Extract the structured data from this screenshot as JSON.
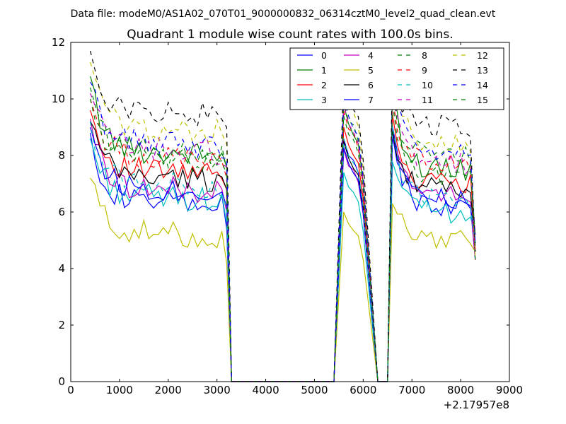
{
  "figure": {
    "suptitle": "Data file: modeM0/AS1A02_070T01_9000000832_06314cztM0_level2_quad_clean.evt",
    "x_offset_label": "+2.17957e8"
  },
  "chart_data": {
    "type": "line",
    "title": "Quadrant 1 module wise count rates with 100.0s bins.",
    "xlabel": "",
    "ylabel": "",
    "xlim": [
      0,
      9000
    ],
    "ylim": [
      0,
      12
    ],
    "x_ticks": [
      0,
      1000,
      2000,
      3000,
      4000,
      5000,
      6000,
      7000,
      8000,
      9000
    ],
    "y_ticks": [
      0,
      2,
      4,
      6,
      8,
      10,
      12
    ],
    "x_offset": 217957000,
    "grid": false,
    "legend": {
      "placement": "top-right",
      "columns": 4
    },
    "segments": [
      {
        "start": 400,
        "end": 3200,
        "step": 100
      },
      {
        "start": 5600,
        "end": 5900,
        "step": 100
      },
      {
        "start": 6600,
        "end": 8300,
        "step": 100
      }
    ],
    "series": [
      {
        "name": "0",
        "color": "#0000ff",
        "style": "solid",
        "first": 8.8,
        "mean": 6.2,
        "drop": 5.4,
        "peak": 8.6,
        "seg3": 6.2
      },
      {
        "name": "1",
        "color": "#008000",
        "style": "solid",
        "first": 10.8,
        "mean": 8.0,
        "drop": 7.6,
        "peak": 9.8,
        "seg3": 7.5
      },
      {
        "name": "2",
        "color": "#ff0000",
        "style": "solid",
        "first": 9.6,
        "mean": 7.3,
        "drop": 6.8,
        "peak": 9.0,
        "seg3": 7.0
      },
      {
        "name": "3",
        "color": "#00bfbf",
        "style": "solid",
        "first": 8.6,
        "mean": 6.4,
        "drop": 5.6,
        "peak": 7.4,
        "seg3": 6.0
      },
      {
        "name": "4",
        "color": "#bf00bf",
        "style": "solid",
        "first": 9.3,
        "mean": 6.7,
        "drop": 6.0,
        "peak": 8.2,
        "seg3": 6.6
      },
      {
        "name": "5",
        "color": "#bfbf00",
        "style": "solid",
        "first": 7.2,
        "mean": 5.1,
        "drop": 4.2,
        "peak": 6.0,
        "seg3": 5.1
      },
      {
        "name": "6",
        "color": "#000000",
        "style": "solid",
        "first": 9.2,
        "mean": 7.1,
        "drop": 6.8,
        "peak": 8.5,
        "seg3": 6.8
      },
      {
        "name": "7",
        "color": "#0000ff",
        "style": "solid",
        "first": 9.0,
        "mean": 6.7,
        "drop": 6.2,
        "peak": 8.3,
        "seg3": 6.5
      },
      {
        "name": "8",
        "color": "#008000",
        "style": "dashed",
        "first": 10.4,
        "mean": 8.0,
        "drop": 7.5,
        "peak": 9.9,
        "seg3": 8.0
      },
      {
        "name": "9",
        "color": "#ff0000",
        "style": "dashed",
        "first": 10.0,
        "mean": 7.8,
        "drop": 7.2,
        "peak": 9.6,
        "seg3": 7.7
      },
      {
        "name": "10",
        "color": "#00bfbf",
        "style": "dashed",
        "first": 9.2,
        "mean": 6.9,
        "drop": 6.2,
        "peak": 8.6,
        "seg3": 6.4
      },
      {
        "name": "11",
        "color": "#bf00bf",
        "style": "dashed",
        "first": 10.2,
        "mean": 8.1,
        "drop": 7.6,
        "peak": 9.8,
        "seg3": 7.7
      },
      {
        "name": "12",
        "color": "#bfbf00",
        "style": "dashed",
        "first": 11.3,
        "mean": 8.8,
        "drop": 8.4,
        "peak": 10.5,
        "seg3": 8.4
      },
      {
        "name": "13",
        "color": "#000000",
        "style": "dashed",
        "first": 11.7,
        "mean": 9.4,
        "drop": 9.0,
        "peak": 10.9,
        "seg3": 9.0
      },
      {
        "name": "14",
        "color": "#0000ff",
        "style": "dashed",
        "first": 10.6,
        "mean": 8.3,
        "drop": 7.9,
        "peak": 10.1,
        "seg3": 8.2
      },
      {
        "name": "15",
        "color": "#008000",
        "style": "dashed",
        "first": 10.0,
        "mean": 7.7,
        "drop": 7.3,
        "peak": 9.4,
        "seg3": 7.3
      }
    ]
  }
}
